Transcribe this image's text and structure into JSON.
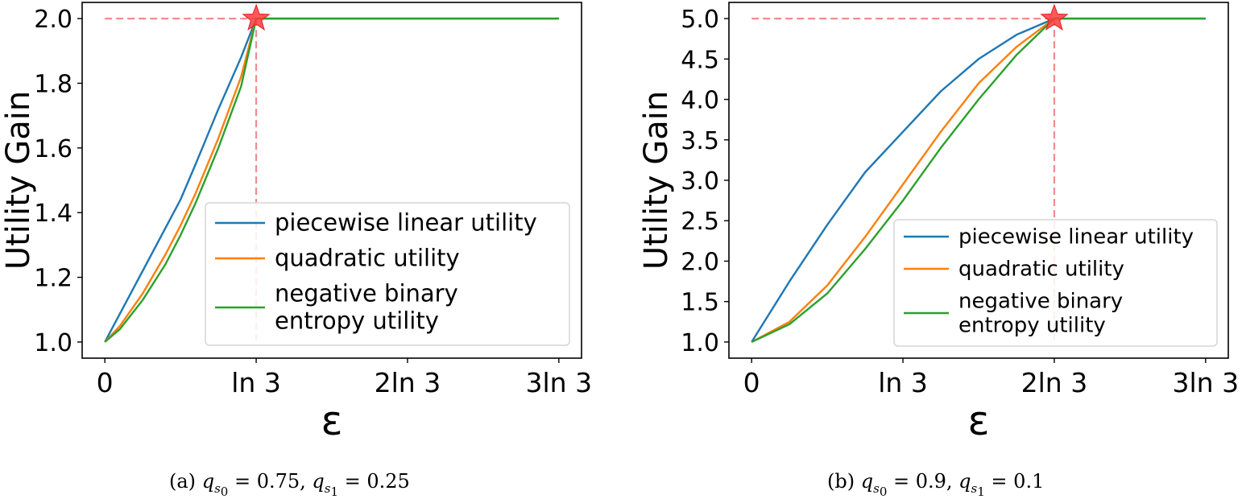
{
  "chart_data": [
    {
      "type": "line",
      "panel": "a",
      "caption": "(a) q_s0 = 0.75, q_s1 = 0.25",
      "caption_parts": {
        "label": "(a)",
        "q0_value": "0.75",
        "q1_value": "0.25"
      },
      "xlabel": "ε",
      "ylabel": "Utility Gain",
      "x_unit": "ln 3",
      "xlim": [
        -0.15,
        3.15
      ],
      "ylim": [
        0.95,
        2.05
      ],
      "xticks": [
        0,
        1,
        2,
        3
      ],
      "xtick_labels": [
        "0",
        "ln 3",
        "2ln 3",
        "3ln 3"
      ],
      "yticks": [
        1.0,
        1.2,
        1.4,
        1.6,
        1.8,
        2.0
      ],
      "ytick_labels": [
        "1.0",
        "1.2",
        "1.4",
        "1.6",
        "1.8",
        "2.0"
      ],
      "grid": false,
      "legend_position": "lower right",
      "marker": {
        "shape": "star",
        "x": 1,
        "y": 2.0,
        "color": "#ff3b3b"
      },
      "reference_lines": {
        "hline_y": 2.0,
        "vline_x": 1,
        "color": "#f08080",
        "style": "dashed"
      },
      "series": [
        {
          "name": "piecewise linear utility",
          "legend": [
            "piecewise linear utility"
          ],
          "color": "#1f77b4",
          "x": [
            0,
            0.25,
            0.5,
            0.6,
            0.75,
            0.9,
            1.0,
            2.0,
            3.0
          ],
          "values": [
            1.0,
            1.22,
            1.44,
            1.55,
            1.72,
            1.88,
            2.0,
            2.0,
            2.0
          ]
        },
        {
          "name": "quadratic utility",
          "legend": [
            "quadratic utility"
          ],
          "color": "#ff7f0e",
          "x": [
            0,
            0.1,
            0.25,
            0.4,
            0.5,
            0.6,
            0.75,
            0.9,
            1.0,
            2.0,
            3.0
          ],
          "values": [
            1.0,
            1.05,
            1.15,
            1.27,
            1.36,
            1.46,
            1.63,
            1.82,
            2.0,
            2.0,
            2.0
          ]
        },
        {
          "name": "negative binary entropy utility",
          "legend": [
            "negative binary",
            "entropy utility"
          ],
          "color": "#2ca02c",
          "x": [
            0,
            0.1,
            0.25,
            0.4,
            0.5,
            0.6,
            0.75,
            0.9,
            1.0,
            2.0,
            3.0
          ],
          "values": [
            1.0,
            1.04,
            1.13,
            1.24,
            1.33,
            1.43,
            1.6,
            1.79,
            2.0,
            2.0,
            2.0
          ]
        }
      ]
    },
    {
      "type": "line",
      "panel": "b",
      "caption": "(b) q_s0 = 0.9, q_s1 = 0.1",
      "caption_parts": {
        "label": "(b)",
        "q0_value": "0.9",
        "q1_value": "0.1"
      },
      "xlabel": "ε",
      "ylabel": "Utility Gain",
      "x_unit": "ln 3",
      "xlim": [
        -0.15,
        3.15
      ],
      "ylim": [
        0.8,
        5.2
      ],
      "xticks": [
        0,
        1,
        2,
        3
      ],
      "xtick_labels": [
        "0",
        "ln 3",
        "2ln 3",
        "3ln 3"
      ],
      "yticks": [
        1.0,
        1.5,
        2.0,
        2.5,
        3.0,
        3.5,
        4.0,
        4.5,
        5.0
      ],
      "ytick_labels": [
        "1.0",
        "1.5",
        "2.0",
        "2.5",
        "3.0",
        "3.5",
        "4.0",
        "4.5",
        "5.0"
      ],
      "grid": false,
      "legend_position": "lower right",
      "marker": {
        "shape": "star",
        "x": 2,
        "y": 5.0,
        "color": "#ff3b3b"
      },
      "reference_lines": {
        "hline_y": 5.0,
        "vline_x": 2,
        "color": "#f08080",
        "style": "dashed"
      },
      "series": [
        {
          "name": "piecewise linear utility",
          "legend": [
            "piecewise linear utility"
          ],
          "color": "#1f77b4",
          "x": [
            0,
            0.25,
            0.5,
            0.75,
            1.0,
            1.25,
            1.5,
            1.75,
            2.0,
            3.0
          ],
          "values": [
            1.0,
            1.75,
            2.45,
            3.1,
            3.6,
            4.1,
            4.5,
            4.8,
            5.0,
            5.0
          ]
        },
        {
          "name": "quadratic utility",
          "legend": [
            "quadratic utility"
          ],
          "color": "#ff7f0e",
          "x": [
            0,
            0.25,
            0.5,
            0.75,
            1.0,
            1.25,
            1.5,
            1.75,
            2.0,
            3.0
          ],
          "values": [
            1.0,
            1.25,
            1.7,
            2.3,
            2.95,
            3.6,
            4.2,
            4.65,
            5.0,
            5.0
          ]
        },
        {
          "name": "negative binary entropy utility",
          "legend": [
            "negative binary",
            "entropy utility"
          ],
          "color": "#2ca02c",
          "x": [
            0,
            0.25,
            0.5,
            0.75,
            1.0,
            1.25,
            1.5,
            1.75,
            2.0,
            3.0
          ],
          "values": [
            1.0,
            1.22,
            1.6,
            2.15,
            2.75,
            3.4,
            4.0,
            4.55,
            5.0,
            5.0
          ]
        }
      ]
    }
  ]
}
